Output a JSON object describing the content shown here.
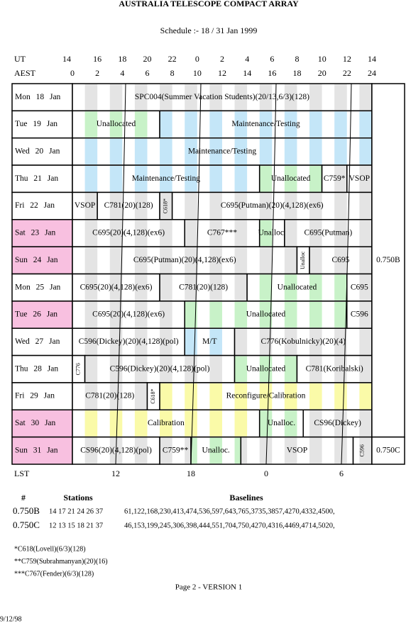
{
  "header": {
    "title": "AUSTRALIA TELESCOPE COMPACT ARRAY",
    "subtitle": "Schedule :- 18 / 31 Jan 1999"
  },
  "ut": {
    "label": "UT",
    "ticks": [
      "14",
      "16",
      "18",
      "20",
      "22",
      "0",
      "2",
      "4",
      "6",
      "8",
      "10",
      "12",
      "14"
    ]
  },
  "aest": {
    "label": "AEST",
    "ticks": [
      "0",
      "2",
      "4",
      "6",
      "8",
      "10",
      "12",
      "14",
      "16",
      "18",
      "20",
      "22",
      "24"
    ]
  },
  "lst": {
    "label": "LST",
    "ticks": [
      "12",
      "18",
      "0",
      "6"
    ]
  },
  "schedule": {
    "rows": [
      {
        "day": "Mon 18 Jan",
        "color": "#ffffff",
        "blocks": [
          {
            "text": "SPC004(Summer Vacation Students)(20/13,6/3)(128)",
            "start": 0,
            "end": 24,
            "color": "#e4e4e4"
          }
        ]
      },
      {
        "day": "Tue 19 Jan",
        "color": "#ffffff",
        "blocks": [
          {
            "text": "Unallocated",
            "start": 0,
            "end": 7,
            "color": "#c8f2c8"
          },
          {
            "text": "Maintenance/Testing",
            "start": 7,
            "end": 24,
            "color": "#c4e6f8"
          }
        ]
      },
      {
        "day": "Wed 20 Jan",
        "color": "#ffffff",
        "blocks": [
          {
            "text": "Maintenance/Testing",
            "start": 0,
            "end": 24,
            "color": "#c4e6f8"
          }
        ]
      },
      {
        "day": "Thu 21 Jan",
        "color": "#ffffff",
        "blocks": [
          {
            "text": "Maintenance/Testing",
            "start": 0,
            "end": 15,
            "color": "#c4e6f8"
          },
          {
            "text": "Unallocated",
            "start": 15,
            "end": 20,
            "color": "#c8f2c8"
          },
          {
            "text": "C759*",
            "start": 20,
            "end": 22,
            "color": "#e4e4e4"
          },
          {
            "text": "VSOP",
            "start": 22,
            "end": 24,
            "color": "#e4e4e4"
          }
        ]
      },
      {
        "day": "Fri 22 Jan",
        "color": "#ffffff",
        "blocks": [
          {
            "text": "VSOP",
            "start": 0,
            "end": 2,
            "color": "#e4e4e4"
          },
          {
            "text": "C781(20)(128)",
            "start": 2,
            "end": 7,
            "color": "#e4e4e4"
          },
          {
            "text": "C618*",
            "start": 7,
            "end": 8,
            "color": "#e4e4e4"
          },
          {
            "text": "C695(Putman)(20)(4,128)(ex6)",
            "start": 8,
            "end": 24,
            "color": "#e4e4e4"
          }
        ]
      },
      {
        "day": "Sat 23 Jan",
        "color": "#f8c0e0",
        "blocks": [
          {
            "text": "C695(20)(4,128)(ex6)",
            "start": 0,
            "end": 9,
            "color": "#e4e4e4"
          },
          {
            "text": "C767***",
            "start": 9,
            "end": 15,
            "color": "#e4e4e4"
          },
          {
            "text": "Unalloc.",
            "start": 15,
            "end": 17,
            "color": "#c8f2c8"
          },
          {
            "text": "C695(Putman)",
            "start": 17,
            "end": 24,
            "color": "#e4e4e4"
          }
        ]
      },
      {
        "day": "Sun 24 Jan",
        "color": "#f8c0e0",
        "blocks": [
          {
            "text": "C695(Putman)(20)(4,128)(ex6)",
            "start": 0,
            "end": 18,
            "color": "#e4e4e4"
          },
          {
            "text": "Unalloc",
            "start": 18,
            "end": 19,
            "color": "#c8f2c8"
          },
          {
            "text": "C695",
            "start": 19,
            "end": 24,
            "color": "#e4e4e4"
          }
        ]
      },
      {
        "day": "Mon 25 Jan",
        "color": "#ffffff",
        "blocks": [
          {
            "text": "C695(20)(4,128)(ex6)",
            "start": 0,
            "end": 7,
            "color": "#e4e4e4"
          },
          {
            "text": "C781(20)(128)",
            "start": 7,
            "end": 14,
            "color": "#e4e4e4"
          },
          {
            "text": "Unallocated",
            "start": 14,
            "end": 22,
            "color": "#c8f2c8"
          },
          {
            "text": "C695",
            "start": 22,
            "end": 24,
            "color": "#e4e4e4"
          }
        ]
      },
      {
        "day": "Tue 26 Jan",
        "color": "#f8c0e0",
        "blocks": [
          {
            "text": "C695(20)(4,128)(ex6)",
            "start": 0,
            "end": 9,
            "color": "#e4e4e4"
          },
          {
            "text": "Unallocated",
            "start": 9,
            "end": 22,
            "color": "#c8f2c8"
          },
          {
            "text": "C596",
            "start": 22,
            "end": 24,
            "color": "#e4e4e4"
          }
        ]
      },
      {
        "day": "Wed 27 Jan",
        "color": "#ffffff",
        "blocks": [
          {
            "text": "C596(Dickey)(20)(4,128)(pol)",
            "start": 0,
            "end": 9,
            "color": "#e4e4e4"
          },
          {
            "text": "M/T",
            "start": 9,
            "end": 13,
            "color": "#c4e6f8"
          },
          {
            "text": "C776(Kobulnicky)(20)(4)",
            "start": 13,
            "end": 24,
            "color": "#e4e4e4"
          }
        ]
      },
      {
        "day": "Thu 28 Jan",
        "color": "#ffffff",
        "blocks": [
          {
            "text": "C776",
            "start": 0,
            "end": 1,
            "color": "#e4e4e4"
          },
          {
            "text": "C596(Dickey)(20)(4,128)(pol)",
            "start": 1,
            "end": 13,
            "color": "#e4e4e4"
          },
          {
            "text": "Unallocated",
            "start": 13,
            "end": 18,
            "color": "#c8f2c8"
          },
          {
            "text": "C781(Koribalski)",
            "start": 18,
            "end": 24,
            "color": "#e4e4e4"
          }
        ]
      },
      {
        "day": "Fri 29 Jan",
        "color": "#ffffff",
        "blocks": [
          {
            "text": "C781(20)(128)",
            "start": 0,
            "end": 6,
            "color": "#e4e4e4"
          },
          {
            "text": "C618*",
            "start": 6,
            "end": 7,
            "color": "#e4e4e4"
          },
          {
            "text": "Reconfigure/Calibration",
            "start": 7,
            "end": 24,
            "color": "#fafaa8"
          }
        ]
      },
      {
        "day": "Sat 30 Jan",
        "color": "#f8c0e0",
        "blocks": [
          {
            "text": "Calibration",
            "start": 0,
            "end": 15,
            "color": "#fafaa8"
          },
          {
            "text": "Unalloc.",
            "start": 15,
            "end": 18.5,
            "color": "#c8f2c8"
          },
          {
            "text": "CS96(Dickey)",
            "start": 18.5,
            "end": 24,
            "color": "#e4e4e4"
          }
        ]
      },
      {
        "day": "Sun 31 Jan",
        "color": "#f8c0e0",
        "blocks": [
          {
            "text": "CS96(20)(4,128)(pol)",
            "start": 0,
            "end": 7,
            "color": "#e4e4e4"
          },
          {
            "text": "C759**",
            "start": 7,
            "end": 9.5,
            "color": "#e4e4e4"
          },
          {
            "text": "Unalloc.",
            "start": 9.5,
            "end": 13.5,
            "color": "#c8f2c8"
          },
          {
            "text": "VSOP",
            "start": 13.5,
            "end": 22.5,
            "color": "#e4e4e4"
          },
          {
            "text": "C596",
            "start": 22.5,
            "end": 24,
            "color": "#e4e4e4"
          }
        ]
      }
    ],
    "configs": [
      {
        "text": "0.750B",
        "first_row": 0,
        "last_row": 12
      },
      {
        "text": "0.750C",
        "first_row": 13,
        "last_row": 13
      }
    ]
  },
  "stations": {
    "headers": [
      "#",
      "Stations",
      "Baselines"
    ],
    "rows": [
      [
        "0.750B",
        "14 17 21 24 26 37",
        "61,122,168,230,413,474,536,597,643,765,3735,3857,4270,4332,4500,"
      ],
      [
        "0.750C",
        "12 13 15 18 21 37",
        "46,153,199,245,306,398,444,551,704,750,4270,4316,4469,4714,5020,"
      ]
    ]
  },
  "notes": [
    "*C618(Lovell)(6/3)(128)",
    "**C759(Subrahmanyan)(20)(16)",
    "***C767(Fender)(6/3)(128)"
  ],
  "footer": {
    "page": "Page 2 - VERSION 1",
    "date": "9/12/98"
  }
}
